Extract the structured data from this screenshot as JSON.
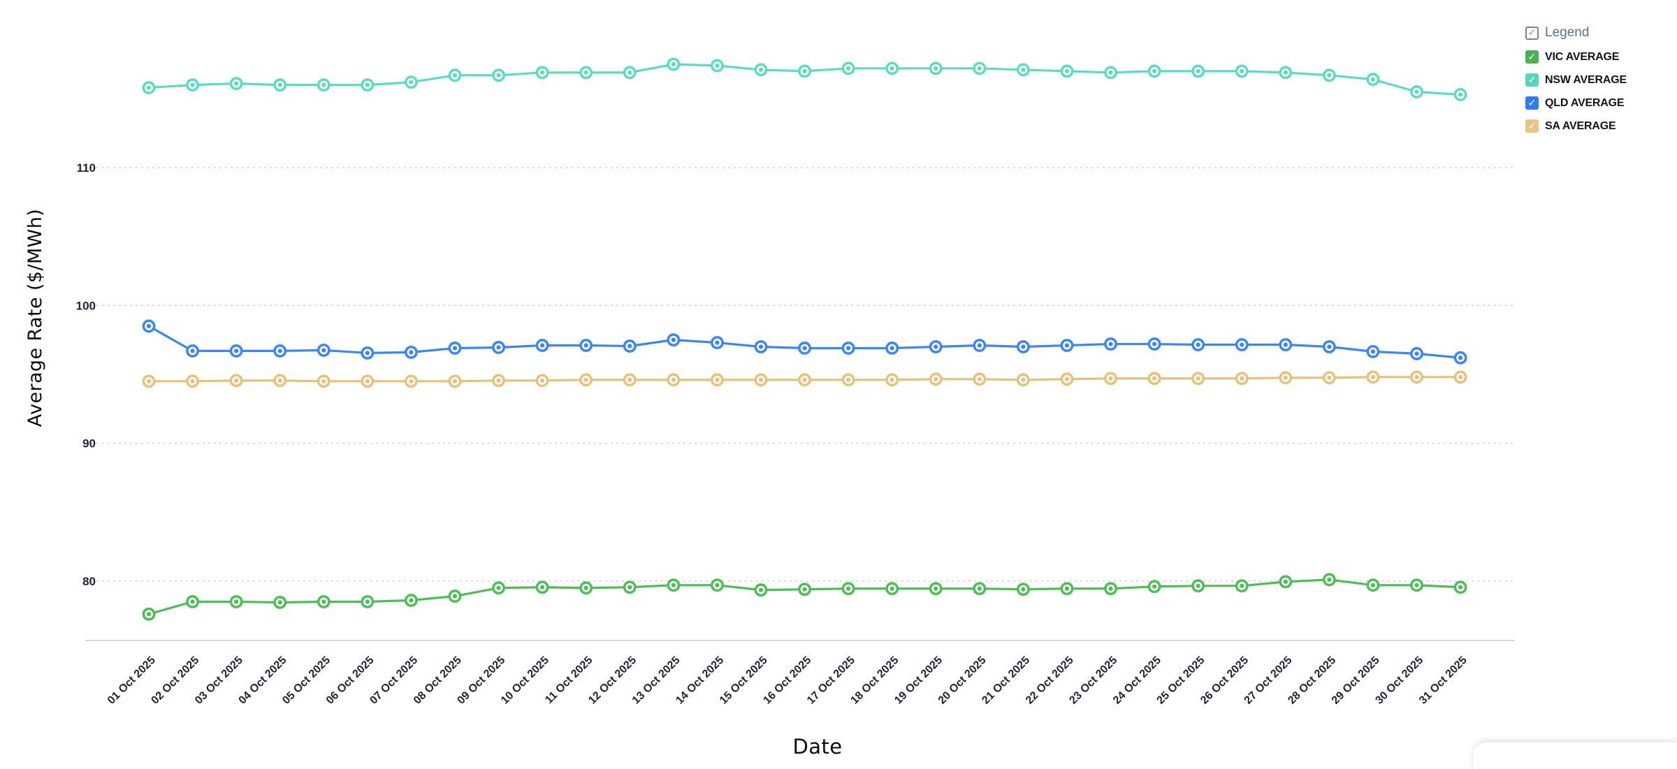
{
  "chart_data": {
    "type": "line",
    "title": "",
    "xlabel": "Date",
    "ylabel": "Average Rate ($/MWh)",
    "x": [
      "01 Oct 2025",
      "02 Oct 2025",
      "03 Oct 2025",
      "04 Oct 2025",
      "05 Oct 2025",
      "06 Oct 2025",
      "07 Oct 2025",
      "08 Oct 2025",
      "09 Oct 2025",
      "10 Oct 2025",
      "11 Oct 2025",
      "12 Oct 2025",
      "13 Oct 2025",
      "14 Oct 2025",
      "15 Oct 2025",
      "16 Oct 2025",
      "17 Oct 2025",
      "18 Oct 2025",
      "19 Oct 2025",
      "20 Oct 2025",
      "21 Oct 2025",
      "22 Oct 2025",
      "23 Oct 2025",
      "24 Oct 2025",
      "25 Oct 2025",
      "26 Oct 2025",
      "27 Oct 2025",
      "28 Oct 2025",
      "29 Oct 2025",
      "30 Oct 2025",
      "31 Oct 2025"
    ],
    "y_ticks": [
      80,
      90,
      100,
      110
    ],
    "ylim": [
      75.7,
      122.2
    ],
    "grid": "horizontal-dashed",
    "legend_position": "top-right",
    "series": [
      {
        "name": "VIC AVERAGE",
        "color": "#4fbc57",
        "values": [
          77.6,
          78.5,
          78.5,
          78.45,
          78.5,
          78.5,
          78.6,
          78.9,
          79.5,
          79.55,
          79.5,
          79.55,
          79.7,
          79.7,
          79.35,
          79.4,
          79.45,
          79.45,
          79.45,
          79.45,
          79.4,
          79.45,
          79.45,
          79.6,
          79.65,
          79.65,
          79.95,
          80.1,
          79.7,
          79.7,
          79.55
        ]
      },
      {
        "name": "NSW AVERAGE",
        "color": "#5fd9c1",
        "values": [
          115.8,
          116.0,
          116.1,
          116.0,
          116.0,
          116.0,
          116.2,
          116.7,
          116.7,
          116.9,
          116.9,
          116.9,
          117.5,
          117.4,
          117.1,
          117.0,
          117.2,
          117.2,
          117.2,
          117.2,
          117.1,
          117.0,
          116.9,
          117.0,
          117.0,
          117.0,
          116.9,
          116.7,
          116.4,
          115.5,
          115.3
        ]
      },
      {
        "name": "QLD AVERAGE",
        "color": "#3d85f2",
        "values": [
          98.5,
          96.7,
          96.7,
          96.7,
          96.75,
          96.55,
          96.6,
          96.9,
          96.95,
          97.1,
          97.1,
          97.05,
          97.5,
          97.3,
          97.0,
          96.9,
          96.9,
          96.9,
          97.0,
          97.1,
          97.0,
          97.1,
          97.2,
          97.2,
          97.15,
          97.15,
          97.15,
          97.0,
          96.65,
          96.5,
          96.2
        ]
      },
      {
        "name": "SA AVERAGE",
        "color": "#e6c17c",
        "values": [
          94.5,
          94.5,
          94.55,
          94.55,
          94.5,
          94.5,
          94.5,
          94.5,
          94.55,
          94.55,
          94.6,
          94.6,
          94.6,
          94.6,
          94.6,
          94.6,
          94.6,
          94.6,
          94.65,
          94.65,
          94.6,
          94.65,
          94.7,
          94.7,
          94.7,
          94.7,
          94.75,
          94.75,
          94.8,
          94.8,
          94.8
        ]
      }
    ]
  },
  "legend": {
    "master_label": "Legend",
    "items": [
      {
        "label": "VIC AVERAGE",
        "color": "#4caf50",
        "checked": true
      },
      {
        "label": "NSW AVERAGE",
        "color": "#57d6bd",
        "checked": true
      },
      {
        "label": "QLD AVERAGE",
        "color": "#2e7df0",
        "checked": true
      },
      {
        "label": "SA AVERAGE",
        "color": "#e8c583",
        "checked": true
      }
    ],
    "checkmark": "✓"
  },
  "colors": {
    "background": "#ffffff",
    "grid": "#d4d4d4",
    "axis_line": "#c9c9c9",
    "tick_label": "#1e2435",
    "title": "#0b0d12"
  }
}
